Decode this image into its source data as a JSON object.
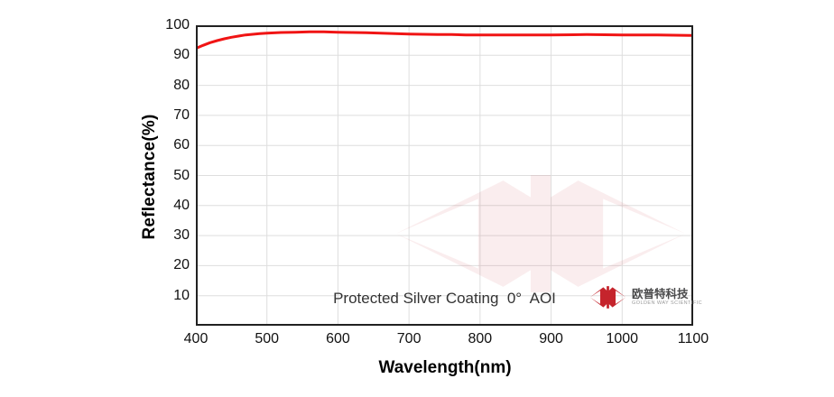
{
  "annotation": {
    "text": "Protected Silver Coating  0°  AOI"
  },
  "logo": {
    "company_cn": "欧普特科技",
    "company_en": "GOLDEN WAY SCIENTIFIC",
    "emblem": "jc-double-arrow-emblem"
  },
  "colors": {
    "line_red": "#f01414",
    "frame": "#212121",
    "grid": "#dedede",
    "logo_red": "#c5242c",
    "annotation_text": "#333333",
    "logo_cn_text": "#4a4a4b",
    "logo_gray": "#9a9a9a",
    "background": "#ffffff"
  },
  "chart_data": {
    "type": "line",
    "title": "",
    "xlabel": "Wavelength(nm)",
    "ylabel": "Reflectance(%)",
    "xlim": [
      400,
      1100
    ],
    "ylim": [
      0,
      100
    ],
    "xticks": [
      400,
      500,
      600,
      700,
      800,
      900,
      1000,
      1100
    ],
    "yticks": [
      10,
      20,
      30,
      40,
      50,
      60,
      70,
      80,
      90,
      100
    ],
    "grid": true,
    "legend": "none",
    "series": [
      {
        "name": "Protected Silver Coating 0° AOI",
        "color": "#f01414",
        "x": [
          400,
          410,
          420,
          430,
          440,
          450,
          460,
          470,
          480,
          490,
          500,
          520,
          540,
          560,
          580,
          600,
          620,
          640,
          660,
          680,
          700,
          720,
          740,
          760,
          780,
          800,
          850,
          900,
          950,
          1000,
          1050,
          1100
        ],
        "reflectance_pct": [
          92.3,
          93.3,
          94.2,
          94.9,
          95.5,
          96.0,
          96.4,
          96.8,
          97.0,
          97.2,
          97.4,
          97.6,
          97.7,
          97.8,
          97.8,
          97.7,
          97.6,
          97.5,
          97.4,
          97.2,
          97.1,
          97.0,
          96.9,
          96.9,
          96.8,
          96.8,
          96.8,
          96.8,
          96.9,
          96.8,
          96.8,
          96.6
        ]
      }
    ]
  }
}
